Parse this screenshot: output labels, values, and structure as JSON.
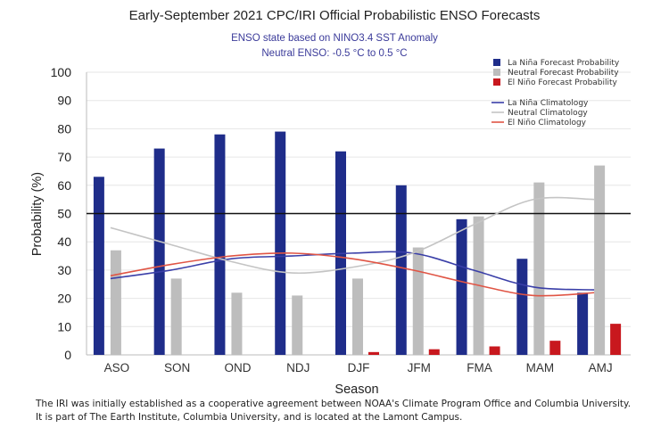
{
  "chart_data": {
    "type": "bar",
    "title": "Early-September 2021 CPC/IRI Official Probabilistic ENSO Forecasts",
    "subtitle_lines": [
      "ENSO state based on NINO3.4 SST Anomaly",
      "Neutral ENSO: -0.5 °C to 0.5 °C"
    ],
    "xlabel": "Season",
    "ylabel": "Probability (%)",
    "ylim": [
      0,
      100
    ],
    "yticks": [
      0,
      10,
      20,
      30,
      40,
      50,
      60,
      70,
      80,
      90,
      100
    ],
    "reference_line": 50,
    "categories": [
      "ASO",
      "SON",
      "OND",
      "NDJ",
      "DJF",
      "JFM",
      "FMA",
      "MAM",
      "AMJ"
    ],
    "series": [
      {
        "name": "La Niña Forecast Probability",
        "color": "#1f2d8a",
        "values": [
          63,
          73,
          78,
          79,
          72,
          60,
          48,
          34,
          22
        ]
      },
      {
        "name": "Neutral Forecast Probability",
        "color": "#bdbdbd",
        "values": [
          37,
          27,
          22,
          21,
          27,
          38,
          49,
          61,
          67
        ]
      },
      {
        "name": "El Niño Forecast Probability",
        "color": "#c8181e",
        "values": [
          0,
          0,
          0,
          0,
          1,
          2,
          3,
          5,
          11
        ]
      }
    ],
    "lines": [
      {
        "name": "La Niña Climatology",
        "color": "#3a3fa8",
        "values": [
          27,
          30,
          34,
          35,
          36,
          36,
          30,
          24,
          23
        ]
      },
      {
        "name": "Neutral Climatology",
        "color": "#c4c4c4",
        "values": [
          45,
          39,
          33,
          29,
          31,
          36,
          46,
          55,
          55
        ]
      },
      {
        "name": "El Niño Climatology",
        "color": "#e05545",
        "values": [
          28,
          32,
          35,
          36,
          34,
          30,
          25,
          21,
          22
        ]
      }
    ],
    "legend_position": "top-right"
  },
  "footnote": {
    "line1": "The IRI was initially established as a cooperative agreement between NOAA's Climate Program Office and Columbia University.",
    "line2": "It is part of The Earth Institute, Columbia University, and is located at the Lamont Campus."
  }
}
